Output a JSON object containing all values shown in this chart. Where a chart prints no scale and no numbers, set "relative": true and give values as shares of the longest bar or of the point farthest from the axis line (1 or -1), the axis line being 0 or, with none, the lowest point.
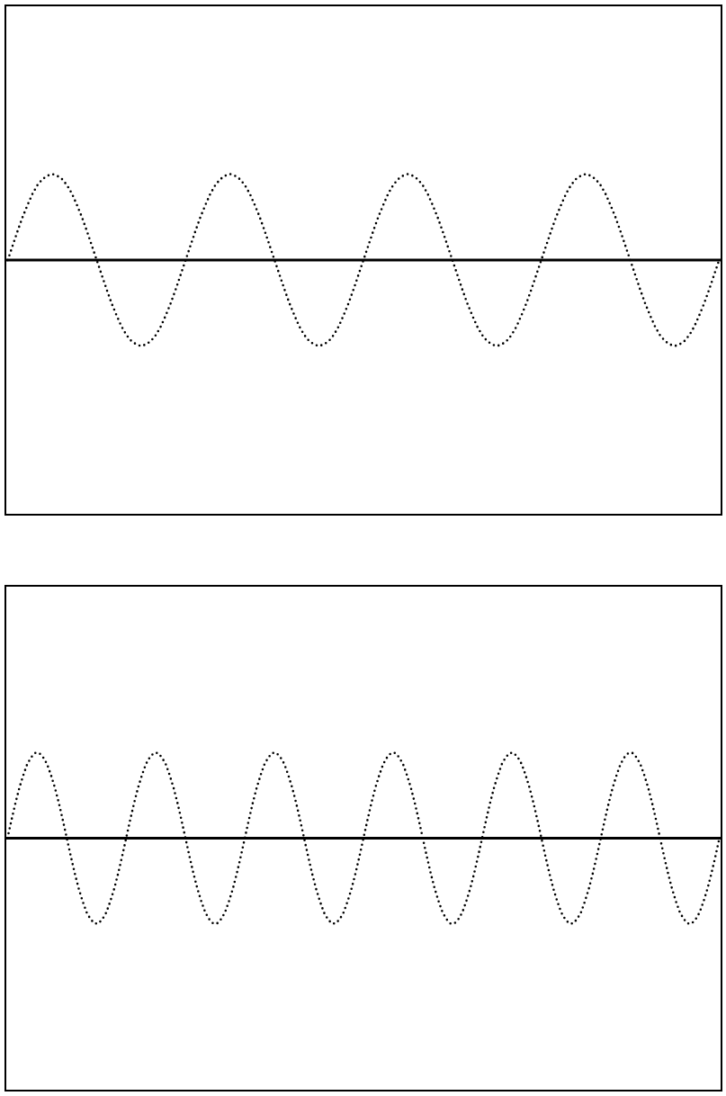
{
  "chart_data": [
    {
      "type": "line",
      "relative": true,
      "line_style": "dotted",
      "color": "#000000",
      "categories": [
        null,
        null,
        null,
        null,
        null,
        null,
        null,
        null,
        null,
        null,
        null,
        null,
        null,
        null,
        null,
        null,
        null,
        null,
        null,
        null,
        null,
        null,
        null,
        null,
        null,
        null,
        null,
        null,
        null,
        null,
        null,
        null,
        null,
        null,
        null,
        null,
        null,
        null,
        null,
        null,
        null,
        null,
        null,
        null,
        null,
        null,
        null,
        null,
        null,
        null,
        null,
        null,
        null,
        null,
        null,
        null,
        null,
        null,
        null,
        null,
        null,
        null,
        null,
        null,
        null,
        null,
        null,
        null,
        null,
        null,
        null,
        null,
        null,
        null,
        null,
        null,
        null,
        null,
        null,
        null,
        null,
        null,
        null,
        null,
        null,
        null,
        null,
        null,
        null,
        null,
        null,
        null,
        null,
        null,
        null,
        null,
        null,
        null,
        null,
        null,
        null,
        null,
        null,
        null,
        null,
        null,
        null,
        null,
        null,
        null,
        null,
        null,
        null,
        null,
        null,
        null,
        null,
        null,
        null,
        null,
        null,
        null,
        null,
        null,
        null,
        null,
        null,
        null,
        null,
        null,
        null,
        null,
        null,
        null,
        null,
        null,
        null,
        null,
        null,
        null,
        null,
        null,
        null,
        null,
        null
      ],
      "values": [
        0,
        0.17,
        0.34,
        0.5,
        0.64,
        0.77,
        0.87,
        0.94,
        0.98,
        1,
        0.98,
        0.94,
        0.87,
        0.77,
        0.64,
        0.5,
        0.34,
        0.17,
        0,
        -0.17,
        -0.34,
        -0.5,
        -0.64,
        -0.77,
        -0.87,
        -0.94,
        -0.98,
        -1,
        -0.98,
        -0.94,
        -0.87,
        -0.77,
        -0.64,
        -0.5,
        -0.34,
        -0.17,
        0,
        0.17,
        0.34,
        0.5,
        0.64,
        0.77,
        0.87,
        0.94,
        0.98,
        1,
        0.98,
        0.94,
        0.87,
        0.77,
        0.64,
        0.5,
        0.34,
        0.17,
        0,
        -0.17,
        -0.34,
        -0.5,
        -0.64,
        -0.77,
        -0.87,
        -0.94,
        -0.98,
        -1,
        -0.98,
        -0.94,
        -0.87,
        -0.77,
        -0.64,
        -0.5,
        -0.34,
        -0.17,
        0,
        0.17,
        0.34,
        0.5,
        0.64,
        0.77,
        0.87,
        0.94,
        0.98,
        1,
        0.98,
        0.94,
        0.87,
        0.77,
        0.64,
        0.5,
        0.34,
        0.17,
        0,
        -0.17,
        -0.34,
        -0.5,
        -0.64,
        -0.77,
        -0.87,
        -0.94,
        -0.98,
        -1,
        -0.98,
        -0.94,
        -0.87,
        -0.77,
        -0.64,
        -0.5,
        -0.34,
        -0.17,
        0,
        0.17,
        0.34,
        0.5,
        0.64,
        0.77,
        0.87,
        0.94,
        0.98,
        1,
        0.98,
        0.94,
        0.87,
        0.77,
        0.64,
        0.5,
        0.34,
        0.17,
        0,
        -0.17,
        -0.34,
        -0.5,
        -0.64,
        -0.77,
        -0.87,
        -0.94,
        -0.98,
        -1,
        -0.98,
        -0.94,
        -0.87,
        -0.77,
        -0.64,
        -0.5,
        -0.34,
        -0.17,
        0
      ]
    },
    {
      "type": "line",
      "relative": true,
      "line_style": "dotted",
      "color": "#000000",
      "categories": [
        null,
        null,
        null,
        null,
        null,
        null,
        null,
        null,
        null,
        null,
        null,
        null,
        null,
        null,
        null,
        null,
        null,
        null,
        null,
        null,
        null,
        null,
        null,
        null,
        null,
        null,
        null,
        null,
        null,
        null,
        null,
        null,
        null,
        null,
        null,
        null,
        null,
        null,
        null,
        null,
        null,
        null,
        null,
        null,
        null,
        null,
        null,
        null,
        null,
        null,
        null,
        null,
        null,
        null,
        null,
        null,
        null,
        null,
        null,
        null,
        null,
        null,
        null,
        null,
        null,
        null,
        null,
        null,
        null,
        null,
        null,
        null,
        null,
        null,
        null,
        null,
        null,
        null,
        null,
        null,
        null,
        null,
        null,
        null,
        null,
        null,
        null,
        null,
        null,
        null,
        null,
        null,
        null,
        null,
        null,
        null,
        null,
        null,
        null,
        null,
        null,
        null,
        null,
        null,
        null,
        null,
        null,
        null,
        null,
        null,
        null,
        null,
        null,
        null,
        null,
        null,
        null,
        null,
        null,
        null,
        null,
        null,
        null,
        null,
        null,
        null,
        null,
        null,
        null,
        null,
        null,
        null,
        null,
        null,
        null,
        null,
        null,
        null,
        null,
        null,
        null,
        null,
        null,
        null,
        null,
        null,
        null,
        null,
        null,
        null,
        null,
        null,
        null,
        null,
        null,
        null,
        null,
        null,
        null,
        null,
        null,
        null,
        null,
        null,
        null,
        null,
        null,
        null,
        null,
        null,
        null,
        null,
        null,
        null,
        null,
        null,
        null,
        null,
        null,
        null,
        null
      ],
      "values": [
        0,
        0.21,
        0.41,
        0.59,
        0.74,
        0.87,
        0.95,
        1,
        1,
        0.95,
        0.87,
        0.74,
        0.59,
        0.41,
        0.21,
        0,
        -0.21,
        -0.41,
        -0.59,
        -0.74,
        -0.87,
        -0.95,
        -1,
        -1,
        -0.95,
        -0.87,
        -0.74,
        -0.59,
        -0.41,
        -0.21,
        0,
        0.21,
        0.41,
        0.59,
        0.74,
        0.87,
        0.95,
        1,
        1,
        0.95,
        0.87,
        0.74,
        0.59,
        0.41,
        0.21,
        0,
        -0.21,
        -0.41,
        -0.59,
        -0.74,
        -0.87,
        -0.95,
        -1,
        -1,
        -0.95,
        -0.87,
        -0.74,
        -0.59,
        -0.41,
        -0.21,
        0,
        0.21,
        0.41,
        0.59,
        0.74,
        0.87,
        0.95,
        1,
        1,
        0.95,
        0.87,
        0.74,
        0.59,
        0.41,
        0.21,
        0,
        -0.21,
        -0.41,
        -0.59,
        -0.74,
        -0.87,
        -0.95,
        -1,
        -1,
        -0.95,
        -0.87,
        -0.74,
        -0.59,
        -0.41,
        -0.21,
        0,
        0.21,
        0.41,
        0.59,
        0.74,
        0.87,
        0.95,
        1,
        1,
        0.95,
        0.87,
        0.74,
        0.59,
        0.41,
        0.21,
        0,
        -0.21,
        -0.41,
        -0.59,
        -0.74,
        -0.87,
        -0.95,
        -1,
        -1,
        -0.95,
        -0.87,
        -0.74,
        -0.59,
        -0.41,
        -0.21,
        0,
        0.21,
        0.41,
        0.59,
        0.74,
        0.87,
        0.95,
        1,
        1,
        0.95,
        0.87,
        0.74,
        0.59,
        0.41,
        0.21,
        0,
        -0.21,
        -0.41,
        -0.59,
        -0.74,
        -0.87,
        -0.95,
        -1,
        -1,
        -0.95,
        -0.87,
        -0.74,
        -0.59,
        -0.41,
        -0.21,
        0,
        0.21,
        0.41,
        0.59,
        0.74,
        0.87,
        0.95,
        1,
        1,
        0.95,
        0.87,
        0.74,
        0.59,
        0.41,
        0.21,
        0,
        -0.21,
        -0.41,
        -0.59,
        -0.74,
        -0.87,
        -0.95,
        -1,
        -1,
        -0.95,
        -0.87,
        -0.74,
        -0.59,
        -0.41,
        -0.21,
        0
      ]
    }
  ]
}
